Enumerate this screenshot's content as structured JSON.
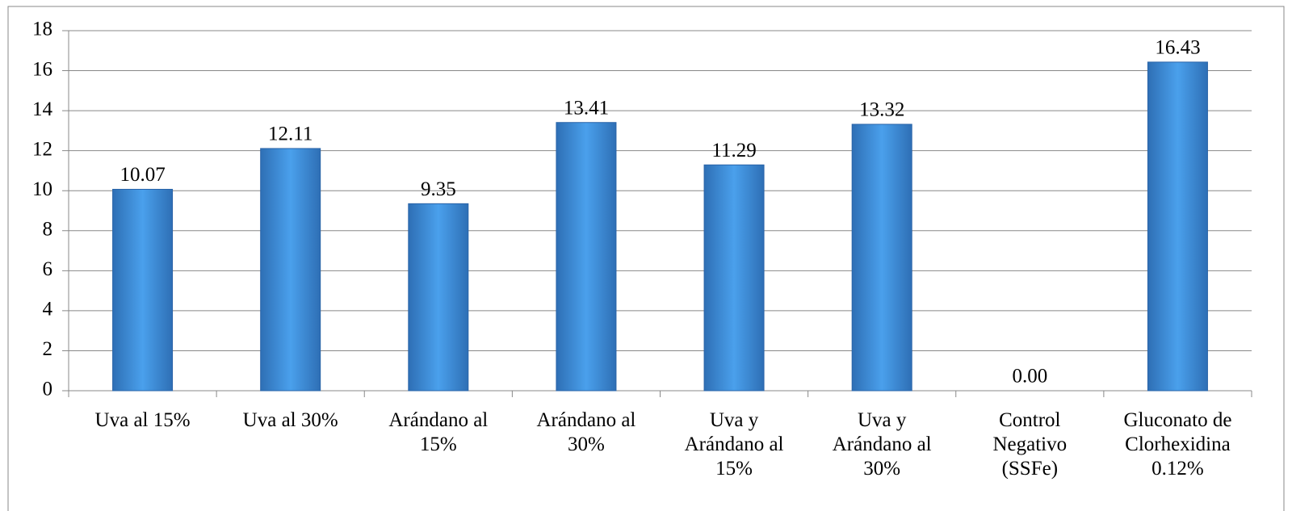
{
  "chart_data": {
    "type": "bar",
    "categories": [
      "Uva al 15%",
      "Uva al 30%",
      "Arándano al 15%",
      "Arándano al 30%",
      "Uva y Arándano al 15%",
      "Uva y Arándano al 30%",
      "Control Negativo (SSFe)",
      "Gluconato de Clorhexidina 0.12%"
    ],
    "values": [
      10.07,
      12.11,
      9.35,
      13.41,
      11.29,
      13.32,
      0,
      16.43
    ],
    "value_labels": [
      "10.07",
      "12.11",
      "9.35",
      "13.41",
      "11.29",
      "13.32",
      "0.00",
      "16.43"
    ],
    "color": "#3f8fdc",
    "ylim": [
      0,
      18
    ],
    "yticks": [
      0,
      2,
      4,
      6,
      8,
      10,
      12,
      14,
      16,
      18
    ],
    "grid": true
  }
}
